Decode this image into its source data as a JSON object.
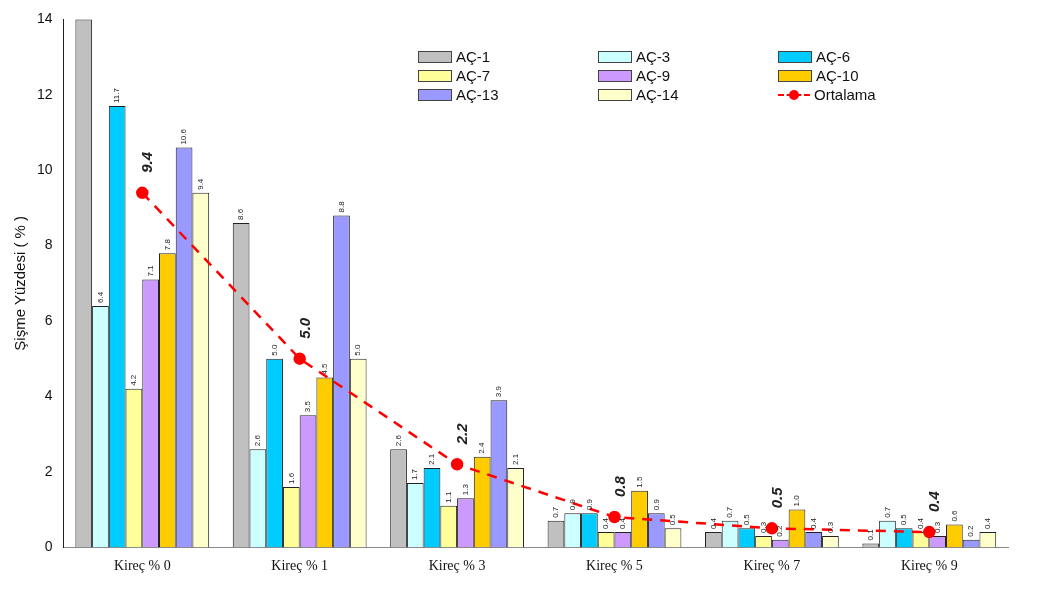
{
  "chart_data": {
    "type": "bar",
    "ylabel": "Şişme Yüzdesi ( % )",
    "categories": [
      "Kireç % 0",
      "Kireç % 1",
      "Kireç % 3",
      "Kireç % 5",
      "Kireç % 7",
      "Kireç % 9"
    ],
    "ylim": [
      0,
      14
    ],
    "yticks": [
      0,
      2,
      4,
      6,
      8,
      10,
      12,
      14
    ],
    "grid": false,
    "legend": "top right",
    "series": [
      {
        "name": "AÇ-1",
        "color": "#c0c0c0",
        "values": [
          14,
          8.6,
          2.6,
          0.7,
          0.4,
          0.1
        ],
        "value_labels": [
          null,
          "8.6",
          "2.6",
          "0.7",
          "0.4",
          "0.1"
        ]
      },
      {
        "name": "AÇ-3",
        "color": "#ccffff",
        "values": [
          6.4,
          2.6,
          1.7,
          0.9,
          0.7,
          0.7
        ],
        "value_labels": [
          "6.4",
          "2.6",
          "1.7",
          "0.9",
          "0.7",
          "0.7"
        ]
      },
      {
        "name": "AÇ-6",
        "color": "#00ccff",
        "values": [
          11.7,
          5.0,
          2.1,
          0.9,
          0.5,
          0.5
        ],
        "value_labels": [
          "11.7",
          "5.0",
          "2.1",
          "0.9",
          "0.5",
          "0.5"
        ]
      },
      {
        "name": "AÇ-7",
        "color": "#ffff99",
        "values": [
          4.2,
          1.6,
          1.1,
          0.4,
          0.3,
          0.4
        ],
        "value_labels": [
          "4.2",
          "1.6",
          "1.1",
          "0.4",
          "0.3",
          "0.4"
        ]
      },
      {
        "name": "AÇ-9",
        "color": "#cc99ff",
        "values": [
          7.1,
          3.5,
          1.3,
          0.4,
          0.2,
          0.3
        ],
        "value_labels": [
          "7.1",
          "3.5",
          "1.3",
          "0.4",
          "0.2",
          "0.3"
        ]
      },
      {
        "name": "AÇ-10",
        "color": "#ffcc00",
        "values": [
          7.8,
          4.5,
          2.4,
          1.5,
          1.0,
          0.6
        ],
        "value_labels": [
          "7.8",
          "4.5",
          "2.4",
          "1.5",
          "1.0",
          "0.6"
        ]
      },
      {
        "name": "AÇ-13",
        "color": "#9999ff",
        "values": [
          10.6,
          8.8,
          3.9,
          0.9,
          0.4,
          0.2
        ],
        "value_labels": [
          "10.6",
          "8.8",
          "3.9",
          "0.9",
          "0.4",
          "0.2"
        ]
      },
      {
        "name": "AÇ-14",
        "color": "#ffffcc",
        "values": [
          9.4,
          5.0,
          2.1,
          0.5,
          0.3,
          0.4
        ],
        "value_labels": [
          "9.4",
          "5.0",
          "2.1",
          "0.5",
          "0.3",
          "0.4"
        ]
      },
      {
        "name": "Ortalama",
        "type": "line",
        "color": "#ff0000",
        "marker": "circle",
        "line_style": "dashed",
        "values": [
          9.4,
          5.0,
          2.2,
          0.8,
          0.5,
          0.4
        ],
        "value_labels": [
          "9.4",
          "5.0",
          "2.2",
          "0.8",
          "0.5",
          "0.4"
        ]
      }
    ]
  }
}
